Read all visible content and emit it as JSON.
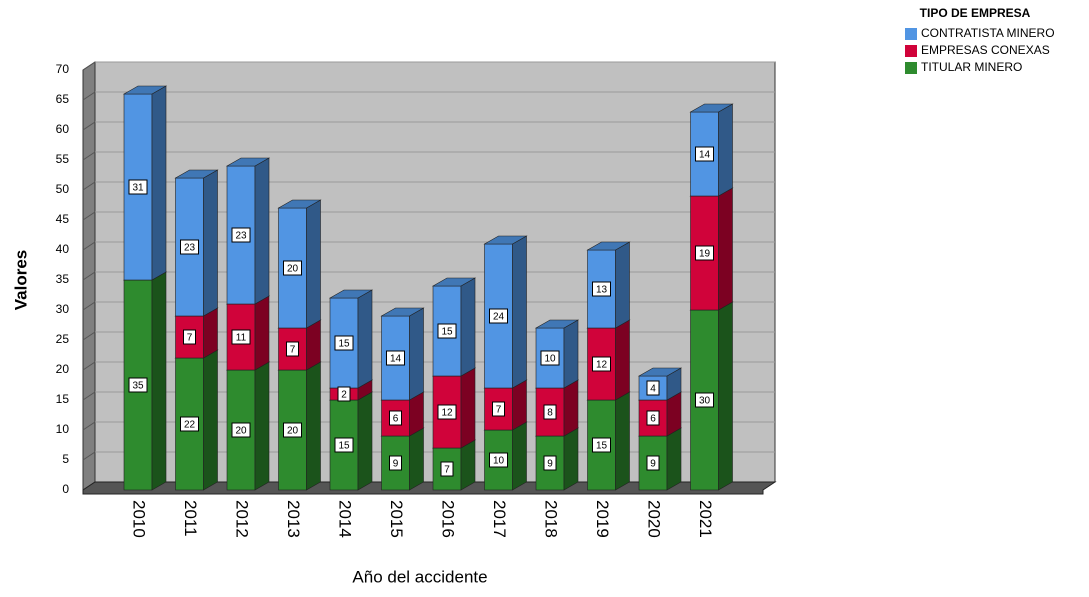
{
  "chart_data": {
    "type": "bar",
    "stacked": true,
    "x_label": "Año del accidente",
    "y_label": "Valores",
    "legend_title": "TIPO DE EMPRESA",
    "legend": "top-right",
    "grid": true,
    "categories": [
      "2010",
      "2011",
      "2012",
      "2013",
      "2014",
      "2015",
      "2016",
      "2017",
      "2018",
      "2019",
      "2020",
      "2021"
    ],
    "series": [
      {
        "name": "TITULAR MINERO",
        "color": "#2e8b2e",
        "values": [
          35,
          22,
          20,
          20,
          15,
          9,
          7,
          10,
          9,
          15,
          9,
          30
        ]
      },
      {
        "name": "EMPRESAS CONEXAS",
        "color": "#d0033a",
        "values": [
          null,
          7,
          11,
          7,
          2,
          6,
          12,
          7,
          8,
          12,
          6,
          19
        ]
      },
      {
        "name": "CONTRATISTA MINERO",
        "color": "#5195e3",
        "values": [
          31,
          23,
          23,
          20,
          15,
          14,
          15,
          24,
          10,
          13,
          4,
          14
        ]
      }
    ],
    "ylim": [
      0,
      70
    ],
    "yticks": [
      0,
      5,
      10,
      15,
      20,
      25,
      30,
      35,
      40,
      45,
      50,
      55,
      60,
      65,
      70
    ]
  }
}
